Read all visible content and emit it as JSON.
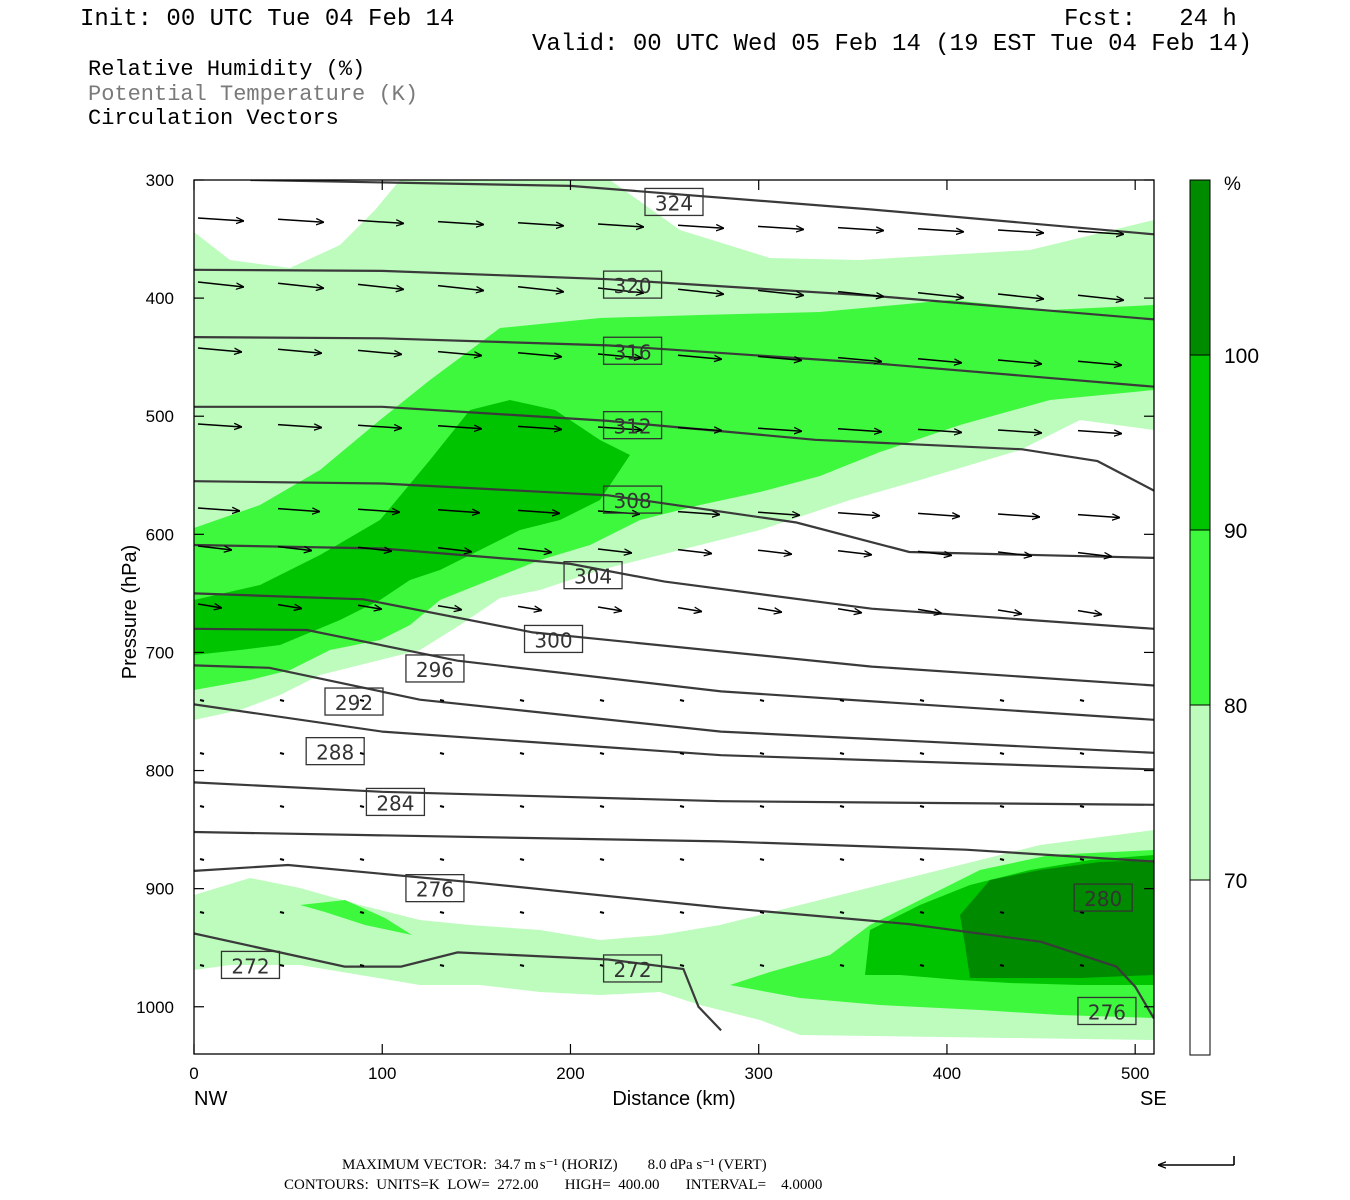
{
  "header": {
    "init": "Init: 00 UTC Tue 04 Feb 14",
    "fcst": "Fcst:   24 h",
    "valid": "Valid: 00 UTC Wed 05 Feb 14 (19 EST Tue 04 Feb 14)"
  },
  "legend": {
    "rh": "Relative Humidity (%)",
    "theta": "Potential Temperature (K)",
    "vectors": "Circulation Vectors"
  },
  "footer": {
    "max_vector": "MAXIMUM VECTOR:  34.7 m s⁻¹ (HORIZ)        8.0 dPa s⁻¹ (VERT)",
    "contours": "CONTOURS:  UNITS=K  LOW=  272.00       HIGH=  400.00       INTERVAL=    4.0000"
  },
  "colors": {
    "rh_70": "#bdfcbd",
    "rh_80": "#3df83d",
    "rh_90": "#00c400",
    "rh_100": "#008a00",
    "contour": "#3a3a3a",
    "vector": "#000000"
  },
  "chart_data": {
    "type": "contour",
    "xlabel": "Distance (km)",
    "ylabel": "Pressure (hPa)",
    "x_endpoints": {
      "left": "NW",
      "right": "SE"
    },
    "xlim": [
      0,
      510
    ],
    "ylim": [
      1040,
      300
    ],
    "x_ticks": [
      0,
      100,
      200,
      300,
      400,
      500
    ],
    "y_ticks": [
      300,
      400,
      500,
      600,
      700,
      800,
      900,
      1000
    ],
    "colorbar": {
      "unit": "%",
      "levels": [
        70,
        80,
        90,
        100
      ],
      "colors": [
        "#ffffff",
        "#bdfcbd",
        "#3df83d",
        "#00c400",
        "#008a00"
      ]
    },
    "isentropes": [
      {
        "value": 324,
        "points": [
          [
            30,
            300
          ],
          [
            200,
            305
          ],
          [
            360,
            325
          ],
          [
            510,
            346
          ]
        ]
      },
      {
        "value": 320,
        "points": [
          [
            0,
            376
          ],
          [
            100,
            377
          ],
          [
            220,
            384
          ],
          [
            360,
            398
          ],
          [
            510,
            418
          ]
        ]
      },
      {
        "value": 316,
        "points": [
          [
            0,
            433
          ],
          [
            100,
            434
          ],
          [
            220,
            440
          ],
          [
            360,
            455
          ],
          [
            510,
            475
          ]
        ]
      },
      {
        "value": 312,
        "points": [
          [
            0,
            492
          ],
          [
            100,
            492
          ],
          [
            220,
            504
          ],
          [
            330,
            520
          ],
          [
            440,
            528
          ],
          [
            480,
            538
          ],
          [
            510,
            563
          ]
        ]
      },
      {
        "value": 308,
        "points": [
          [
            0,
            555
          ],
          [
            100,
            557
          ],
          [
            220,
            567
          ],
          [
            320,
            590
          ],
          [
            380,
            615
          ],
          [
            510,
            620
          ]
        ]
      },
      {
        "value": 304,
        "points": [
          [
            0,
            609
          ],
          [
            100,
            612
          ],
          [
            200,
            625
          ],
          [
            250,
            640
          ],
          [
            360,
            663
          ],
          [
            510,
            680
          ]
        ]
      },
      {
        "value": 300,
        "points": [
          [
            0,
            650
          ],
          [
            90,
            655
          ],
          [
            180,
            683
          ],
          [
            360,
            712
          ],
          [
            510,
            728
          ]
        ]
      },
      {
        "value": 296,
        "points": [
          [
            0,
            680
          ],
          [
            60,
            681
          ],
          [
            140,
            707
          ],
          [
            280,
            733
          ],
          [
            510,
            757
          ]
        ]
      },
      {
        "value": 292,
        "points": [
          [
            0,
            711
          ],
          [
            40,
            713
          ],
          [
            120,
            740
          ],
          [
            280,
            767
          ],
          [
            510,
            785
          ]
        ]
      },
      {
        "value": 288,
        "points": [
          [
            0,
            744
          ],
          [
            100,
            767
          ],
          [
            280,
            787
          ],
          [
            510,
            799
          ]
        ]
      },
      {
        "value": 284,
        "points": [
          [
            0,
            810
          ],
          [
            100,
            818
          ],
          [
            280,
            826
          ],
          [
            510,
            829
          ]
        ]
      },
      {
        "value": 280,
        "points": [
          [
            0,
            852
          ],
          [
            280,
            860
          ],
          [
            410,
            867
          ],
          [
            510,
            877
          ]
        ]
      },
      {
        "value": 276,
        "points": [
          [
            0,
            885
          ],
          [
            50,
            880
          ],
          [
            150,
            895
          ],
          [
            280,
            916
          ],
          [
            380,
            930
          ],
          [
            450,
            945
          ],
          [
            490,
            966
          ],
          [
            500,
            983
          ],
          [
            510,
            1010
          ]
        ]
      },
      {
        "value": 272,
        "points": [
          [
            0,
            938
          ],
          [
            80,
            966
          ],
          [
            110,
            966
          ],
          [
            140,
            954
          ],
          [
            220,
            960
          ],
          [
            260,
            968
          ],
          [
            268,
            1000
          ],
          [
            280,
            1020
          ]
        ]
      }
    ],
    "contour_labels": [
      {
        "value": 324,
        "x": 255,
        "p": 319
      },
      {
        "value": 320,
        "x": 233,
        "p": 389
      },
      {
        "value": 316,
        "x": 233,
        "p": 445
      },
      {
        "value": 312,
        "x": 233,
        "p": 508
      },
      {
        "value": 308,
        "x": 233,
        "p": 571
      },
      {
        "value": 304,
        "x": 212,
        "p": 635
      },
      {
        "value": 300,
        "x": 191,
        "p": 689
      },
      {
        "value": 296,
        "x": 128,
        "p": 714
      },
      {
        "value": 292,
        "x": 85,
        "p": 742
      },
      {
        "value": 288,
        "x": 75,
        "p": 784
      },
      {
        "value": 284,
        "x": 107,
        "p": 827
      },
      {
        "value": 280,
        "x": 483,
        "p": 908
      },
      {
        "value": 276,
        "x": 128,
        "p": 900
      },
      {
        "value": 276,
        "x": 485,
        "p": 1004
      },
      {
        "value": 272,
        "x": 233,
        "p": 968
      },
      {
        "value": 272,
        "x": 30,
        "p": 965
      }
    ],
    "circulation_vectors_note": "wind arrows; largest in upper troposphere, pointing to the east"
  }
}
